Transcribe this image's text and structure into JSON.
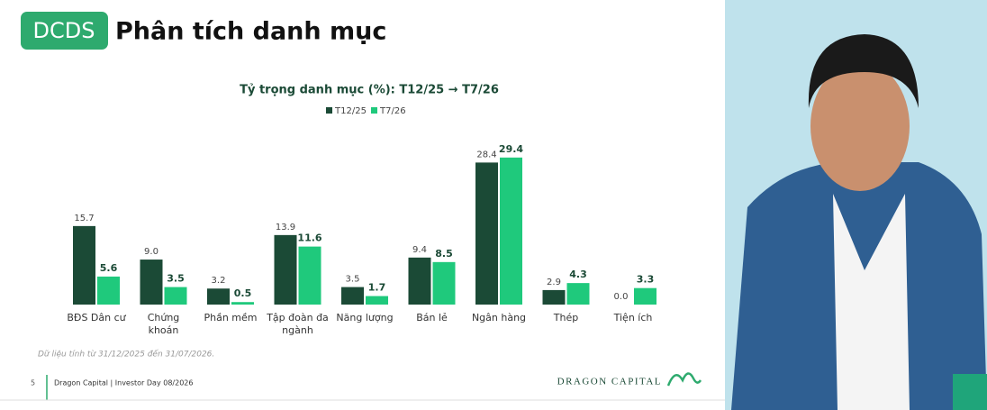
{
  "slide": {
    "badge": "DCDS",
    "heading": "Phân tích danh mục",
    "footnote": "Dữ liệu tính từ 31/12/2025 đến 31/07/2026.",
    "page_number": "5",
    "footer": "Dragon Capital  |  Investor Day 08/2026",
    "brand": "DRAGON CAPITAL"
  },
  "chart_data": {
    "type": "bar",
    "title": "Tỷ trọng danh mục (%): T12/25 → T7/26",
    "categories": [
      "BĐS Dân cư",
      "Chứng khoán",
      "Phần mềm",
      "Tập đoàn đa ngành",
      "Năng lượng",
      "Bán lẻ",
      "Ngân hàng",
      "Thép",
      "Tiện ích"
    ],
    "series": [
      {
        "name": "T12/25",
        "color": "#1b4a36",
        "values": [
          15.7,
          9.0,
          3.2,
          13.9,
          3.5,
          9.4,
          28.4,
          2.9,
          0.0
        ],
        "value_labels": [
          "15.7",
          "9.0",
          "3.2",
          "13.9",
          "3.5",
          "9.4",
          "28.4",
          "2.9",
          "0.0"
        ]
      },
      {
        "name": "T7/26",
        "color": "#1fc97c",
        "values": [
          5.6,
          3.5,
          0.5,
          11.6,
          1.7,
          8.5,
          29.4,
          4.3,
          3.3
        ]
      }
    ],
    "legend": "top"
  }
}
